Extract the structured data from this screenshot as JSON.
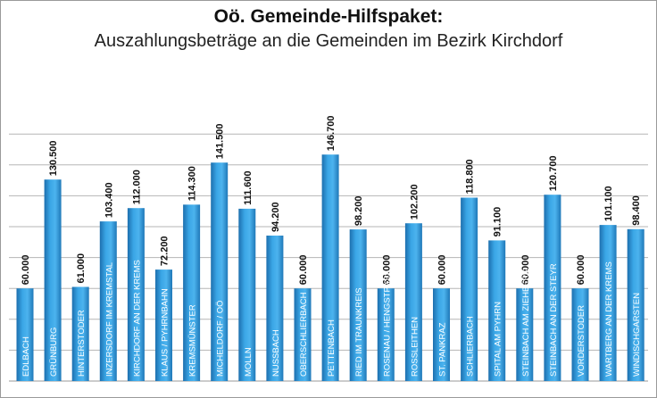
{
  "header": {
    "title": "Oö. Gemeinde-Hilfspaket:",
    "subtitle": "Auszahlungsbeträge an die Gemeinden im Bezirk Kirchdorf"
  },
  "chart_data": {
    "type": "bar",
    "title": "Oö. Gemeinde-Hilfspaket:",
    "subtitle": "Auszahlungsbeträge an die Gemeinden im Bezirk Kirchdorf",
    "xlabel": "",
    "ylabel": "",
    "ylim": [
      0,
      160000
    ],
    "grid": true,
    "bar_color": "#2a8fd0",
    "categories": [
      "EDLBACH",
      "GRÜNBURG",
      "HINTERSTODER",
      "INZERSDORF IM KREMSTAL",
      "KIRCHDORF AN DER KREMS",
      "KLAUS / PYHRNBAHN",
      "KREMSMÜNSTER",
      "MICHELDORF / OÖ",
      "MOLLN",
      "NUSSBACH",
      "OBERSCHLIERBACH",
      "PETTENBACH",
      "RIED IM TRAUNKREIS",
      "ROSENAU / HENGSTPASS",
      "ROSSLEITHEN",
      "ST. PANKRAZ",
      "SCHLIERBACH",
      "SPITAL AM PYHRN",
      "STEINBACH AM ZIEHBERG",
      "STEINBACH AN DER STEYR",
      "VORDERSTODER",
      "WARTBERG AN DER KREMS",
      "WINDISCHGARSTEN"
    ],
    "values": [
      60000,
      130500,
      61000,
      103400,
      112000,
      72200,
      114300,
      141500,
      111600,
      94200,
      60000,
      146700,
      98200,
      60000,
      102200,
      60000,
      118800,
      91100,
      60000,
      120700,
      60000,
      101100,
      98400
    ],
    "data_labels": [
      "60.000",
      "130.500",
      "61.000",
      "103.400",
      "112.000",
      "72.200",
      "114.300",
      "141.500",
      "111.600",
      "94.200",
      "60.000",
      "146.700",
      "98.200",
      "60.000",
      "102.200",
      "60.000",
      "118.800",
      "91.100",
      "60.000",
      "120.700",
      "60.000",
      "101.100",
      "98.400"
    ]
  }
}
